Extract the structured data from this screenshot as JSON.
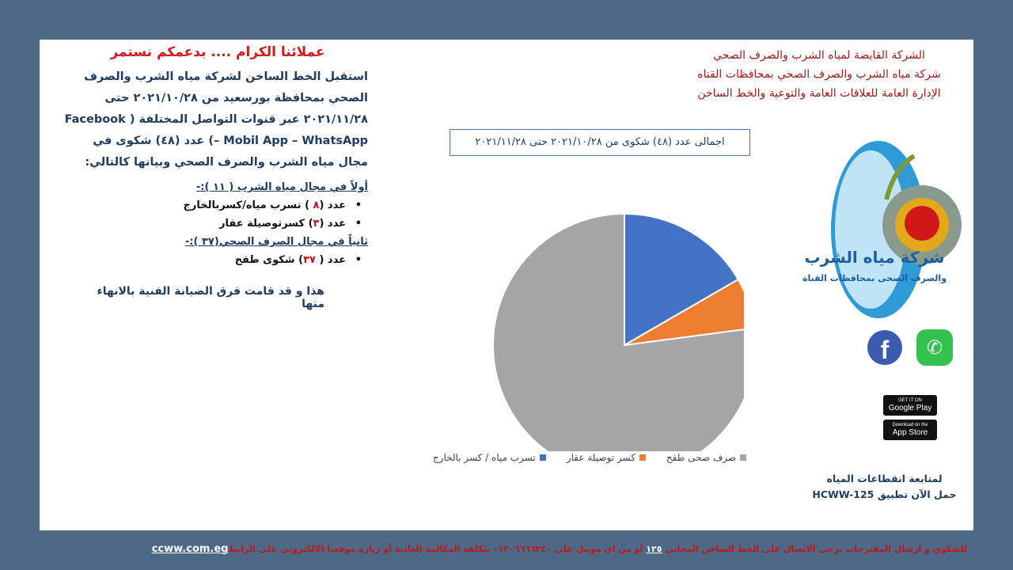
{
  "header": {
    "lines": [
      "الشركة القابضة لمياه الشرب والصرف الصحي",
      "شركة مياه الشرب والصرف الصحي بمحافظات القناه",
      "الإدارة العامة للعلاقات العامة والتوعية والخط الساخن"
    ]
  },
  "left": {
    "title": "عملائنا الكرام .... بدعمكم نستمر",
    "intro": "استقبل الخط الساخن لشركة مياه الشرب والصرف الصحي بمحافظة بورسعيد  من ٢٠٢١/١٠/٢٨ حتى ٢٠٢١/١١/٢٨ عبر قنوات التواصل المختلفة ( Facebook – Mobil App – WhatsApp) عدد (٤٨) شكوى في مجال مياه الشرب والصرف الصحي وبيانها كالتالي:",
    "section1": "أولاً في مجال مياه الشرب ( ١١ ):-",
    "items1": [
      {
        "pre": "عدد (",
        "num": "٨",
        "post": " ) تسرب مياه/كسربالخارج"
      },
      {
        "pre": "عدد (",
        "num": "٣",
        "post": ") كسرتوصيلة عقار"
      }
    ],
    "section2": "ثانياً في مجال الصرف الصحي(٣٧ ):-",
    "items2": [
      {
        "pre": "عدد ( ",
        "num": "٣٧",
        "post": ") شكوى طفح"
      }
    ],
    "closing": "هذا و قد قامت فرق الصيانة الفنية بالانهاء منها"
  },
  "chart_data": {
    "type": "pie",
    "title": "اجمالى عدد (٤٨) شكوى من ٢٠٢١/١٠/٢٨ حتى ٢٠٢١/١١/٢٨",
    "categories": [
      "تسرب مياه / كسر بالخارج",
      "كسر توصيلة عقار",
      "صرف صحى طفح"
    ],
    "values": [
      8,
      3,
      37
    ],
    "colors": [
      "#4472c4",
      "#ed7d31",
      "#a5a5a5"
    ],
    "legend": "bottom"
  },
  "logo": {
    "line1": "شركة مياه الشرب",
    "line2": "والصرف الصحى بمحافظات القناة"
  },
  "social": [
    "facebook-icon",
    "whatsapp-icon"
  ],
  "stores": [
    "Google Play",
    "App Store"
  ],
  "stores_small": [
    "GET IT ON",
    "Download on the"
  ],
  "follow": {
    "line1": "لمتابعة انقطاعات المياه",
    "line2": "حمل الآن تطبيق HCWW-125"
  },
  "footer": {
    "text1": "للشكوى و ارسال المقترحات يرجى الاتصال على الخط الساخن المجاني ",
    "hotline": "١٢٥",
    "text2": " أو من أي موبيل على ٠١٢٠٦٦٦٦٢٤٠  بتكلفة المكالمة العادية  أو زيارة موقعنا الالكتروني على الرابط",
    "link": "ccww.com.eg"
  }
}
